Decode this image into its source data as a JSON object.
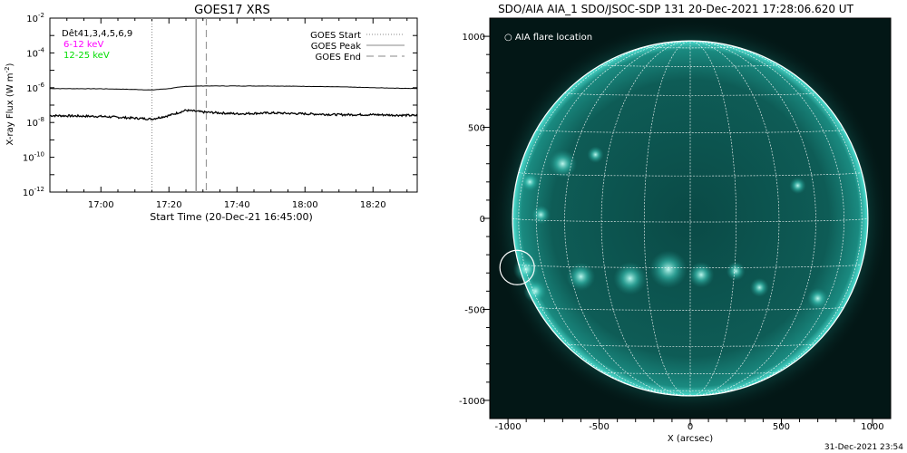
{
  "footer_timestamp": "31-Dec-2021 23:54",
  "chart_data": [
    {
      "type": "line",
      "title": "GOES17 XRS",
      "xlabel": "Start Time (20-Dec-21 16:45:00)",
      "ylabel": "X-ray Flux (W m",
      "ylabel_sup": "-2",
      "ylabel_close": ")",
      "yscale": "log",
      "xlim": [
        "16:45",
        "18:33"
      ],
      "ylim": [
        1e-12,
        0.01
      ],
      "x_ticks": [
        "17:00",
        "17:20",
        "17:40",
        "18:00",
        "18:20"
      ],
      "y_ticks": [
        {
          "base": "10",
          "exp": "-2",
          "value": -2
        },
        {
          "base": "10",
          "exp": "-4",
          "value": -4
        },
        {
          "base": "10",
          "exp": "-6",
          "value": -6
        },
        {
          "base": "10",
          "exp": "-8",
          "value": -8
        },
        {
          "base": "10",
          "exp": "-10",
          "value": -10
        },
        {
          "base": "10",
          "exp": "-12",
          "value": -12
        }
      ],
      "detectors_label": "Dêt41,3,4,5,6,9",
      "series": [
        {
          "name": "6-12 keV",
          "color": "#ff00ff",
          "x": [
            "16:45",
            "17:00",
            "17:10",
            "17:15",
            "17:20",
            "17:25",
            "17:30",
            "17:40",
            "17:50",
            "18:00",
            "18:10",
            "18:20",
            "18:33"
          ],
          "log10_flux": [
            -6.05,
            -6.06,
            -6.1,
            -6.13,
            -6.05,
            -5.92,
            -5.9,
            -5.9,
            -5.9,
            -5.92,
            -5.95,
            -6.0,
            -6.05
          ]
        },
        {
          "name": "12-25 keV",
          "color": "#00ee00",
          "x": [
            "16:45",
            "17:00",
            "17:10",
            "17:15",
            "17:20",
            "17:25",
            "17:30",
            "17:40",
            "17:50",
            "18:00",
            "18:10",
            "18:20",
            "18:33"
          ],
          "log10_flux": [
            -7.6,
            -7.65,
            -7.75,
            -7.8,
            -7.6,
            -7.3,
            -7.4,
            -7.5,
            -7.45,
            -7.5,
            -7.55,
            -7.55,
            -7.6
          ]
        }
      ],
      "legend": [
        {
          "label": "GOES Start",
          "style": "dotted"
        },
        {
          "label": "GOES Peak",
          "style": "solid"
        },
        {
          "label": "GOES End",
          "style": "dashed"
        }
      ],
      "vlines": [
        {
          "x": "17:15",
          "style": "dotted"
        },
        {
          "x": "17:28",
          "style": "solid"
        },
        {
          "x": "17:31",
          "style": "dashed"
        }
      ]
    },
    {
      "type": "heatmap",
      "title": "SDO/AIA AIA_1 SDO/JSOC-SDP 131 20-Dec-2021 17:28:06.620 UT",
      "xlabel": "X (arcsec)",
      "ylabel": "",
      "xlim": [
        -1100,
        1100
      ],
      "ylim": [
        -1100,
        1100
      ],
      "x_ticks": [
        -1000,
        -500,
        0,
        500,
        1000
      ],
      "y_ticks": [
        1000,
        500,
        0,
        -500,
        -1000
      ],
      "legend": [
        {
          "label": "AIA flare location",
          "symbol": "circle"
        }
      ],
      "flare_location": {
        "x": -950,
        "y": -270
      },
      "solar_radius_arcsec": 975,
      "grid": "heliographic, 15 deg"
    }
  ]
}
